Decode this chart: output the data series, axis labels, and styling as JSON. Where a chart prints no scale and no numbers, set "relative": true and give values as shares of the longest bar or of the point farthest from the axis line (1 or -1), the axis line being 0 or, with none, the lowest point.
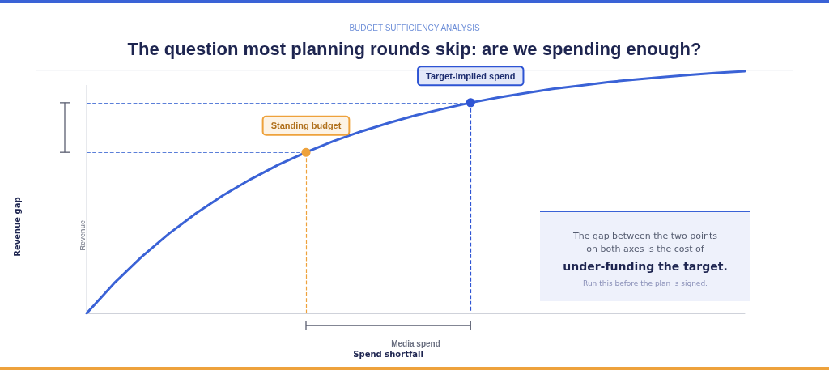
{
  "chart_data": {
    "type": "line",
    "relative": true,
    "subtitle": "BUDGET SUFFICIENCY ANALYSIS",
    "title": "The question most planning rounds skip: are we spending enough?",
    "xlabel": "Media spend",
    "ylabel": "Revenue",
    "categories": [
      null,
      null,
      null,
      null,
      null,
      null,
      null,
      null,
      null,
      null,
      null,
      null,
      null,
      null,
      null,
      null,
      null,
      null,
      null,
      null,
      null,
      null,
      null,
      null,
      null
    ],
    "series": [
      {
        "color": "#3a62d6",
        "values": [
          0,
          0.124,
          0.233,
          0.329,
          0.414,
          0.489,
          0.555,
          0.614,
          0.665,
          0.711,
          0.751,
          0.786,
          0.818,
          0.845,
          0.87,
          0.891,
          0.91,
          0.927,
          0.941,
          0.955,
          0.966,
          0.976,
          0.985,
          0.993,
          1
        ]
      },
      {
        "type": "line",
        "marker": "circle",
        "name": "Standing budget",
        "color": "#eea23c",
        "values": [
          null,
          null,
          null,
          null,
          null,
          null,
          null,
          null,
          0.665,
          null,
          null,
          null,
          null,
          null,
          null,
          null,
          null,
          null,
          null,
          null,
          null,
          null,
          null,
          null,
          null
        ]
      },
      {
        "type": "line",
        "marker": "circle",
        "name": "Target-implied spend",
        "color": "#2f55d4",
        "values": [
          null,
          null,
          null,
          null,
          null,
          null,
          null,
          null,
          null,
          null,
          null,
          null,
          null,
          null,
          0.87,
          null,
          null,
          null,
          null,
          null,
          null,
          null,
          null,
          null,
          null
        ]
      }
    ],
    "annotations": [
      "Revenue gap",
      "Spend shortfall",
      "The gap between the two points",
      "on both axes is the cost of",
      "under-funding the target.",
      "Run this before the plan is signed."
    ],
    "ref_lines": [
      {
        "axis": "y",
        "value": 0.665,
        "color": "#5b7fd9",
        "line_style": "dashed"
      },
      {
        "axis": "y",
        "value": 0.87,
        "color": "#5b7fd9",
        "line_style": "dashed"
      }
    ],
    "legend": false,
    "marker": "none",
    "line_style": "solid",
    "grid": false
  }
}
